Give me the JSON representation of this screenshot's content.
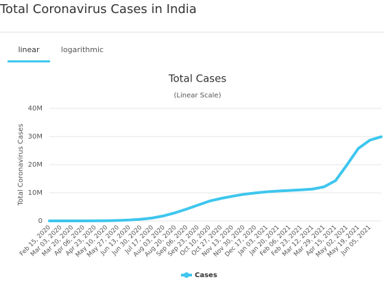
{
  "page_title": "Total Coronavirus Cases in India",
  "tabs": [
    "linear",
    "logarithmic"
  ],
  "chart_data": {
    "type": "line",
    "title": "Total Cases",
    "subtitle": "(Linear Scale)",
    "y_label": "Total Coronavirus Cases",
    "categories": [
      "Feb 15, 2020",
      "Mar 03, 2020",
      "Mar 20, 2020",
      "Apr 06, 2020",
      "Apr 23, 2020",
      "May 10, 2020",
      "May 27, 2020",
      "Jun 13, 2020",
      "Jun 30, 2020",
      "Jul 17, 2020",
      "Aug 03, 2020",
      "Aug 20, 2020",
      "Sep 06, 2020",
      "Sep 23, 2020",
      "Oct 10, 2020",
      "Oct 27, 2020",
      "Nov 13, 2020",
      "Nov 30, 2020",
      "Dec 17, 2020",
      "Jan 03, 2021",
      "Jan 20, 2021",
      "Feb 06, 2021",
      "Feb 23, 2021",
      "Mar 12, 2021",
      "Mar 29, 2021",
      "Apr 15, 2021",
      "May 02, 2021",
      "May 19, 2021",
      "Jun 05, 2021",
      null
    ],
    "series": [
      {
        "name": "Cases",
        "color": "#3ec6ee",
        "values": [
          3,
          5,
          250,
          4800,
          23000,
          67000,
          158000,
          320000,
          585000,
          1040000,
          1805000,
          2900000,
          4200000,
          5650000,
          7050000,
          7990000,
          8770000,
          9460000,
          9930000,
          10340000,
          10600000,
          10830000,
          11030000,
          11310000,
          12100000,
          14290000,
          19900000,
          25770000,
          28690000,
          29930000
        ]
      }
    ],
    "ylim": [
      0,
      40000000
    ],
    "yticks": [
      0,
      {
        "value": 10000000,
        "label": "10M"
      },
      {
        "value": 20000000,
        "label": "20M"
      },
      {
        "value": 30000000,
        "label": "30M"
      },
      {
        "value": 40000000,
        "label": "40M"
      }
    ],
    "grid": true,
    "legend": "bottom"
  }
}
